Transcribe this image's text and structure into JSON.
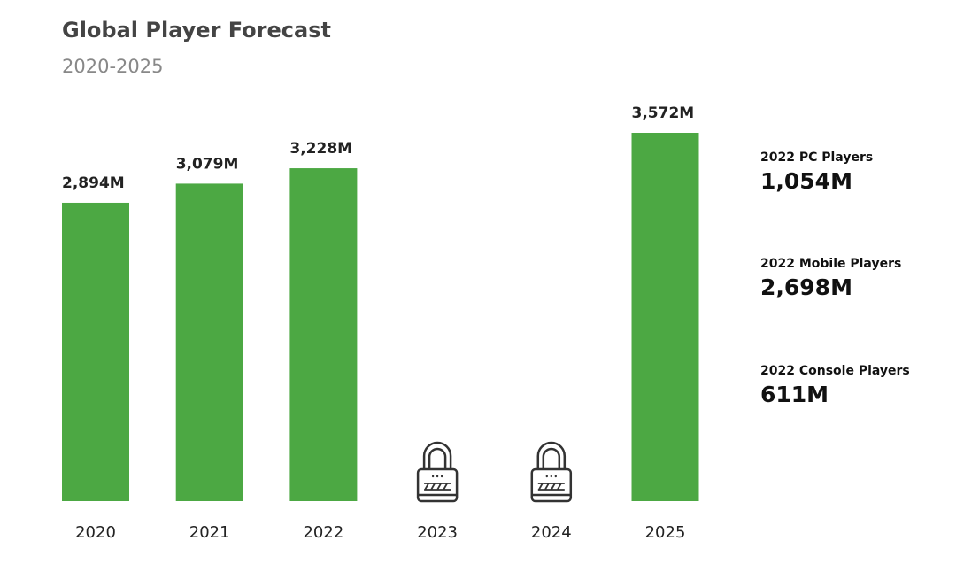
{
  "chart_data": {
    "type": "bar",
    "title": "Global Player Forecast",
    "subtitle": "2020-2025",
    "categories": [
      "2020",
      "2021",
      "2022",
      "2023",
      "2024",
      "2025"
    ],
    "values": [
      2894,
      3079,
      3228,
      null,
      null,
      3572
    ],
    "data_labels": [
      "2,894M",
      "3,079M",
      "3,228M",
      "",
      "",
      "3,572M"
    ],
    "locked": [
      false,
      false,
      false,
      true,
      true,
      false
    ],
    "locked_icon": "lock-icon",
    "bar_color": "#4ca843",
    "ylim": [
      0,
      3572
    ],
    "grid": false
  },
  "stats": [
    {
      "label": "2022 PC Players",
      "value": "1,054M"
    },
    {
      "label": "2022 Mobile Players",
      "value": "2,698M"
    },
    {
      "label": "2022 Console Players",
      "value": "611M"
    }
  ]
}
